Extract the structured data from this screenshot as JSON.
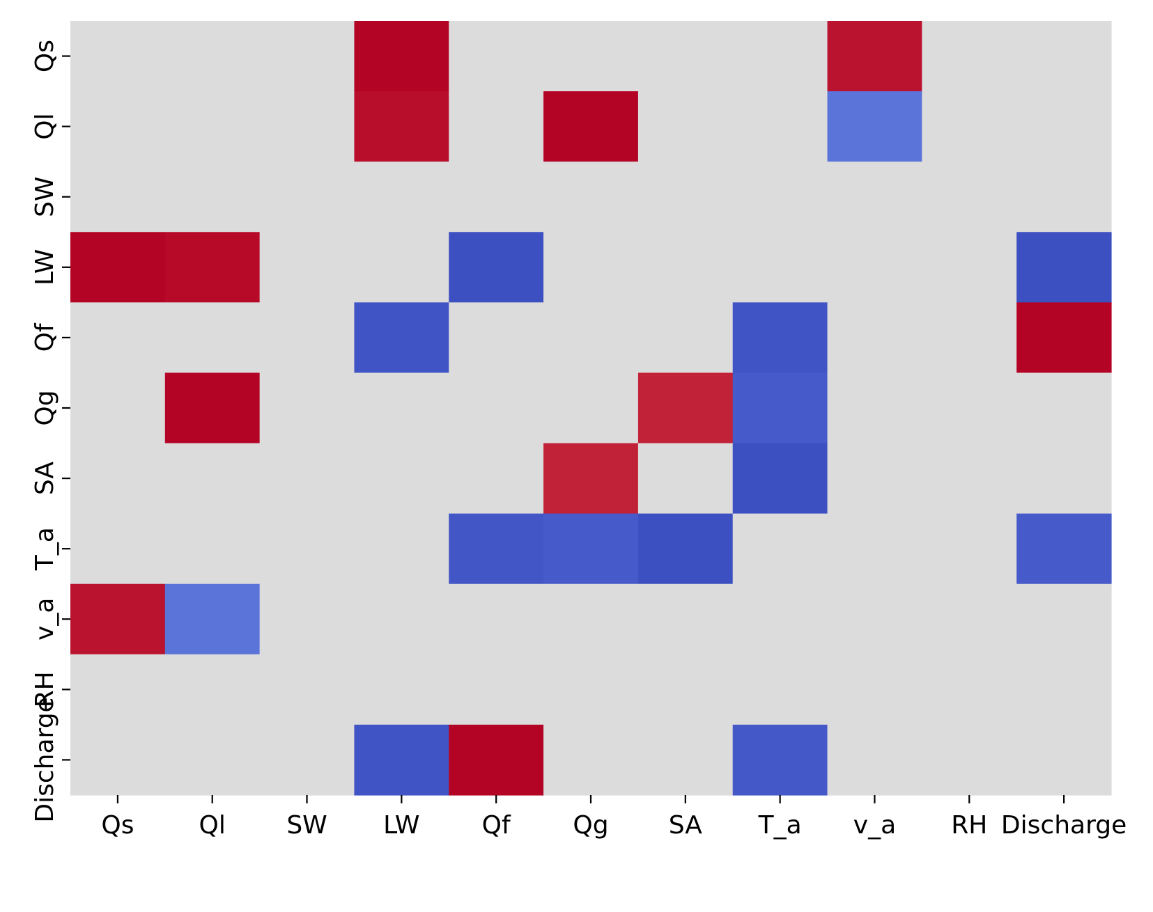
{
  "chart_data": {
    "type": "heatmap",
    "x_labels": [
      "Qs",
      "Ql",
      "SW",
      "LW",
      "Qf",
      "Qg",
      "SA",
      "T_a",
      "v_a",
      "RH",
      "Discharge"
    ],
    "y_labels": [
      "Qs",
      "Ql",
      "SW",
      "LW",
      "Qf",
      "Qg",
      "SA",
      "T_a",
      "v_a",
      "RH",
      "Discharge"
    ],
    "colormap": "coolwarm",
    "value_range": [
      -1,
      1
    ],
    "neutral_color": "#dcdcdc",
    "colorbar": false,
    "grid": false,
    "values": [
      [
        0,
        0,
        0,
        1.0,
        0,
        0,
        0,
        0,
        0.95,
        0,
        0
      ],
      [
        0,
        0,
        0,
        0.97,
        0,
        1.0,
        0,
        0,
        -0.8,
        0,
        0
      ],
      [
        0,
        0,
        0,
        0,
        0,
        0,
        0,
        0,
        0,
        0,
        0
      ],
      [
        1.0,
        0.98,
        0,
        0,
        -0.98,
        0,
        0,
        0,
        0,
        0,
        -0.98
      ],
      [
        0,
        0,
        0,
        -0.96,
        0,
        0,
        0,
        -0.96,
        0,
        0,
        1.0
      ],
      [
        0,
        1.0,
        0,
        0,
        0,
        0,
        0.9,
        -0.93,
        0,
        0,
        0
      ],
      [
        0,
        0,
        0,
        0,
        0,
        0.9,
        0,
        -0.98,
        0,
        0,
        0
      ],
      [
        0,
        0,
        0,
        0,
        -0.95,
        -0.93,
        -0.98,
        0,
        0,
        0,
        -0.93
      ],
      [
        0.95,
        -0.8,
        0,
        0,
        0,
        0,
        0,
        0,
        0,
        0,
        0
      ],
      [
        0,
        0,
        0,
        0,
        0,
        0,
        0,
        0,
        0,
        0,
        0
      ],
      [
        0,
        0,
        0,
        -0.96,
        1.0,
        0,
        0,
        -0.94,
        0,
        0,
        0
      ]
    ]
  }
}
